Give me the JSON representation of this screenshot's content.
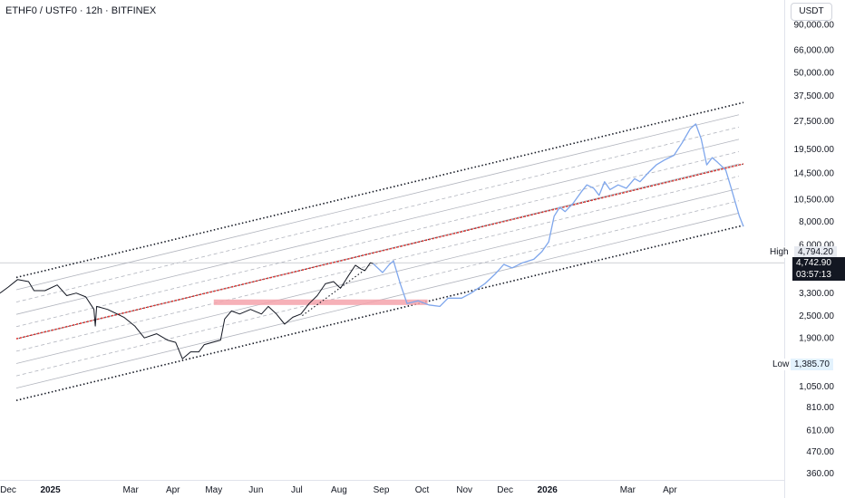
{
  "header": {
    "title": "ETHF0 / USTF0 · 12h · BITFINEX"
  },
  "axis": {
    "currency": "USDT"
  },
  "tags": {
    "high_label": "High",
    "high_value": "4,794.20",
    "price": "4,742.90",
    "timer": "03:57:13",
    "low_label": "Low",
    "low_value": "1,385.70"
  },
  "colors": {
    "price_line": "#131722",
    "projection": "#7ea6ec",
    "channel_outer": "#131722",
    "channel_inner": "#b2b5be",
    "median": "#e53935",
    "zone": "#f4a3ab"
  },
  "chart_data": {
    "type": "line",
    "title": "ETHF0 / USTF0 · 12h · BITFINEX",
    "y_scale": "log",
    "ylim": [
      340,
      100000
    ],
    "y_ticks": [
      {
        "label": "90,000.00",
        "value": 90000
      },
      {
        "label": "66,000.00",
        "value": 66000
      },
      {
        "label": "50,000.00",
        "value": 50000
      },
      {
        "label": "37,500.00",
        "value": 37500
      },
      {
        "label": "27,500.00",
        "value": 27500
      },
      {
        "label": "19,500.00",
        "value": 19500
      },
      {
        "label": "14,500.00",
        "value": 14500
      },
      {
        "label": "10,500.00",
        "value": 10500
      },
      {
        "label": "8,000.00",
        "value": 8000
      },
      {
        "label": "6,000.00",
        "value": 6000
      },
      {
        "label": "3,300.00",
        "value": 3300
      },
      {
        "label": "2,500.00",
        "value": 2500
      },
      {
        "label": "1,900.00",
        "value": 1900
      },
      {
        "label": "1,050.00",
        "value": 1050
      },
      {
        "label": "810.00",
        "value": 810
      },
      {
        "label": "610.00",
        "value": 610
      },
      {
        "label": "470.00",
        "value": 470
      },
      {
        "label": "360.00",
        "value": 360
      }
    ],
    "x_range": [
      "2024-11-25",
      "2026-05-25"
    ],
    "x_ticks": [
      {
        "label": "Dec",
        "date": "2024-12-01"
      },
      {
        "label": "2025",
        "date": "2025-01-01"
      },
      {
        "label": "Mar",
        "date": "2025-03-01"
      },
      {
        "label": "Apr",
        "date": "2025-04-01"
      },
      {
        "label": "May",
        "date": "2025-05-01"
      },
      {
        "label": "Jun",
        "date": "2025-06-01"
      },
      {
        "label": "Jul",
        "date": "2025-07-01"
      },
      {
        "label": "Aug",
        "date": "2025-08-01"
      },
      {
        "label": "Sep",
        "date": "2025-09-01"
      },
      {
        "label": "Oct",
        "date": "2025-10-01"
      },
      {
        "label": "Nov",
        "date": "2025-11-01"
      },
      {
        "label": "Dec",
        "date": "2025-12-01"
      },
      {
        "label": "2026",
        "date": "2026-01-01"
      },
      {
        "label": "Mar",
        "date": "2026-03-01"
      },
      {
        "label": "Apr",
        "date": "2026-04-01"
      }
    ],
    "series": [
      {
        "role": "price",
        "points": [
          [
            "2024-11-25",
            3300
          ],
          [
            "2024-12-01",
            3550
          ],
          [
            "2024-12-08",
            3900
          ],
          [
            "2024-12-16",
            3800
          ],
          [
            "2024-12-20",
            3400
          ],
          [
            "2024-12-28",
            3400
          ],
          [
            "2025-01-06",
            3650
          ],
          [
            "2025-01-13",
            3200
          ],
          [
            "2025-01-20",
            3300
          ],
          [
            "2025-01-27",
            3150
          ],
          [
            "2025-02-02",
            2700
          ],
          [
            "2025-02-03",
            2200
          ],
          [
            "2025-02-04",
            2800
          ],
          [
            "2025-02-12",
            2700
          ],
          [
            "2025-02-24",
            2450
          ],
          [
            "2025-03-04",
            2200
          ],
          [
            "2025-03-11",
            1900
          ],
          [
            "2025-03-20",
            2000
          ],
          [
            "2025-03-28",
            1850
          ],
          [
            "2025-04-03",
            1800
          ],
          [
            "2025-04-08",
            1470
          ],
          [
            "2025-04-14",
            1600
          ],
          [
            "2025-04-20",
            1600
          ],
          [
            "2025-04-24",
            1750
          ],
          [
            "2025-04-30",
            1800
          ],
          [
            "2025-05-06",
            1850
          ],
          [
            "2025-05-09",
            2400
          ],
          [
            "2025-05-14",
            2650
          ],
          [
            "2025-05-20",
            2550
          ],
          [
            "2025-05-28",
            2700
          ],
          [
            "2025-06-05",
            2550
          ],
          [
            "2025-06-10",
            2800
          ],
          [
            "2025-06-16",
            2550
          ],
          [
            "2025-06-22",
            2250
          ],
          [
            "2025-06-28",
            2450
          ],
          [
            "2025-07-04",
            2550
          ],
          [
            "2025-07-10",
            2900
          ],
          [
            "2025-07-16",
            3200
          ],
          [
            "2025-07-22",
            3700
          ],
          [
            "2025-07-28",
            3800
          ],
          [
            "2025-08-02",
            3500
          ],
          [
            "2025-08-08",
            4100
          ],
          [
            "2025-08-13",
            4650
          ],
          [
            "2025-08-17",
            4450
          ],
          [
            "2025-08-20",
            4350
          ],
          [
            "2025-08-24",
            4794
          ],
          [
            "2025-08-26",
            4743
          ]
        ]
      },
      {
        "role": "projection",
        "points": [
          [
            "2025-08-26",
            4743
          ],
          [
            "2025-09-02",
            4250
          ],
          [
            "2025-09-07",
            4700
          ],
          [
            "2025-09-10",
            4900
          ],
          [
            "2025-09-15",
            3700
          ],
          [
            "2025-09-20",
            2900
          ],
          [
            "2025-09-28",
            3000
          ],
          [
            "2025-10-06",
            2850
          ],
          [
            "2025-10-14",
            2800
          ],
          [
            "2025-10-20",
            3100
          ],
          [
            "2025-10-30",
            3100
          ],
          [
            "2025-11-06",
            3300
          ],
          [
            "2025-11-16",
            3700
          ],
          [
            "2025-11-24",
            4200
          ],
          [
            "2025-11-30",
            4700
          ],
          [
            "2025-12-06",
            4500
          ],
          [
            "2025-12-14",
            4800
          ],
          [
            "2025-12-22",
            5000
          ],
          [
            "2025-12-28",
            5500
          ],
          [
            "2026-01-02",
            6200
          ],
          [
            "2026-01-06",
            8500
          ],
          [
            "2026-01-10",
            9500
          ],
          [
            "2026-01-14",
            9000
          ],
          [
            "2026-01-20",
            10000
          ],
          [
            "2026-01-26",
            11500
          ],
          [
            "2026-01-30",
            12500
          ],
          [
            "2026-02-04",
            12000
          ],
          [
            "2026-02-08",
            11000
          ],
          [
            "2026-02-12",
            13000
          ],
          [
            "2026-02-16",
            11800
          ],
          [
            "2026-02-22",
            12500
          ],
          [
            "2026-02-28",
            12000
          ],
          [
            "2026-03-06",
            13500
          ],
          [
            "2026-03-10",
            13000
          ],
          [
            "2026-03-16",
            14500
          ],
          [
            "2026-03-22",
            16000
          ],
          [
            "2026-03-28",
            17000
          ],
          [
            "2026-04-04",
            18000
          ],
          [
            "2026-04-10",
            21000
          ],
          [
            "2026-04-16",
            25000
          ],
          [
            "2026-04-20",
            26500
          ],
          [
            "2026-04-24",
            22000
          ],
          [
            "2026-04-28",
            16000
          ],
          [
            "2026-05-02",
            17500
          ],
          [
            "2026-05-06",
            16500
          ],
          [
            "2026-05-12",
            15000
          ],
          [
            "2026-05-16",
            12000
          ],
          [
            "2026-05-22",
            8500
          ],
          [
            "2026-05-25",
            7500
          ]
        ]
      }
    ],
    "channel": {
      "start": "2024-11-25",
      "end": "2026-05-25",
      "lower_start": 880,
      "lower_end": 7600,
      "upper_start": 4000,
      "upper_end": 34500,
      "median_start": 1880,
      "median_end": 16200,
      "inner_level_count": 9
    },
    "zone": {
      "start": "2025-05-01",
      "end": "2025-10-05",
      "low": 2850,
      "high": 3050
    }
  }
}
